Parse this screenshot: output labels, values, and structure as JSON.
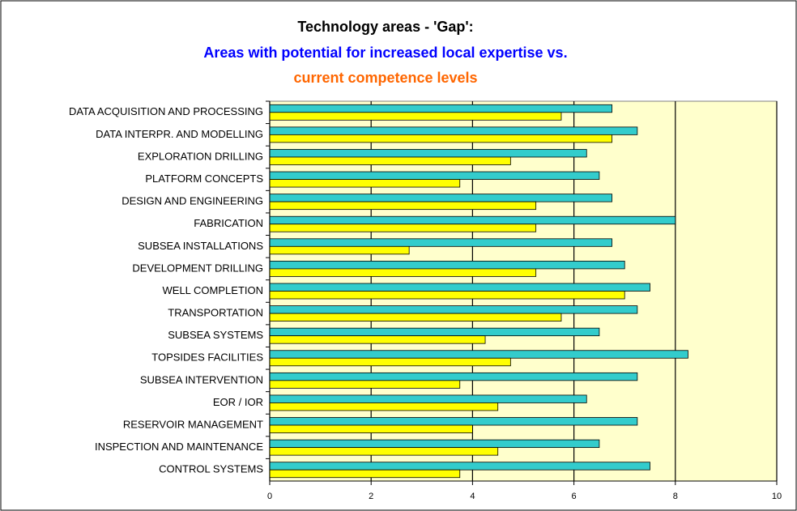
{
  "chart_data": {
    "type": "barh",
    "title": "Technology areas - 'Gap':",
    "subtitle": "Areas with potential for increased local expertise vs.",
    "subtitle2": "current competence levels",
    "categories": [
      "DATA ACQUISITION AND PROCESSING",
      "DATA INTERPR. AND MODELLING",
      "EXPLORATION DRILLING",
      "PLATFORM CONCEPTS",
      "DESIGN AND ENGINEERING",
      "FABRICATION",
      "SUBSEA INSTALLATIONS",
      "DEVELOPMENT DRILLING",
      "WELL COMPLETION",
      "TRANSPORTATION",
      "SUBSEA SYSTEMS",
      "TOPSIDES FACILITIES",
      "SUBSEA INTERVENTION",
      "EOR / IOR",
      "RESERVOIR MANAGEMENT",
      "INSPECTION AND MAINTENANCE",
      "CONTROL SYSTEMS"
    ],
    "series": [
      {
        "color": "#33cccc",
        "values": [
          6.75,
          7.25,
          6.25,
          6.5,
          6.75,
          8,
          6.75,
          7,
          7.5,
          7.25,
          6.5,
          8.25,
          7.25,
          6.25,
          7.25,
          6.5,
          7.5
        ]
      },
      {
        "color": "#ffff00",
        "values": [
          5.75,
          6.75,
          4.75,
          3.75,
          5.25,
          5.25,
          2.75,
          5.25,
          7,
          5.75,
          4.25,
          4.75,
          3.75,
          4.5,
          4,
          4.5,
          3.75
        ]
      }
    ],
    "xlim": [
      0,
      10
    ],
    "xticks": [
      0,
      2,
      4,
      6,
      8,
      10
    ],
    "grid": true
  }
}
